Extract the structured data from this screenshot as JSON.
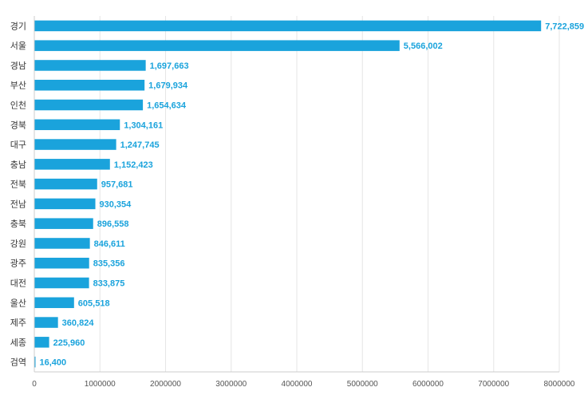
{
  "chart_data": {
    "type": "bar",
    "orientation": "horizontal",
    "categories": [
      "경기",
      "서울",
      "경남",
      "부산",
      "인천",
      "경북",
      "대구",
      "충남",
      "전북",
      "전남",
      "충북",
      "강원",
      "광주",
      "대전",
      "울산",
      "제주",
      "세종",
      "검역"
    ],
    "values": [
      7722859,
      5566002,
      1697663,
      1679934,
      1654634,
      1304161,
      1247745,
      1152423,
      957681,
      930354,
      896558,
      846611,
      835356,
      833875,
      605518,
      360824,
      225960,
      16400
    ],
    "value_labels": [
      "7,722,859",
      "5,566,002",
      "1,697,663",
      "1,679,934",
      "1,654,634",
      "1,304,161",
      "1,247,745",
      "1,152,423",
      "957,681",
      "930,354",
      "896,558",
      "846,611",
      "835,356",
      "833,875",
      "605,518",
      "360,824",
      "225,960",
      "16,400"
    ],
    "x_ticks": [
      "0",
      "1000000",
      "2000000",
      "3000000",
      "4000000",
      "5000000",
      "6000000",
      "7000000",
      "8000000"
    ],
    "xlim": [
      0,
      8000000
    ],
    "grid": true,
    "legend": "none",
    "bar_color": "#1aa3dc",
    "label_color": "#1aa3dc"
  }
}
